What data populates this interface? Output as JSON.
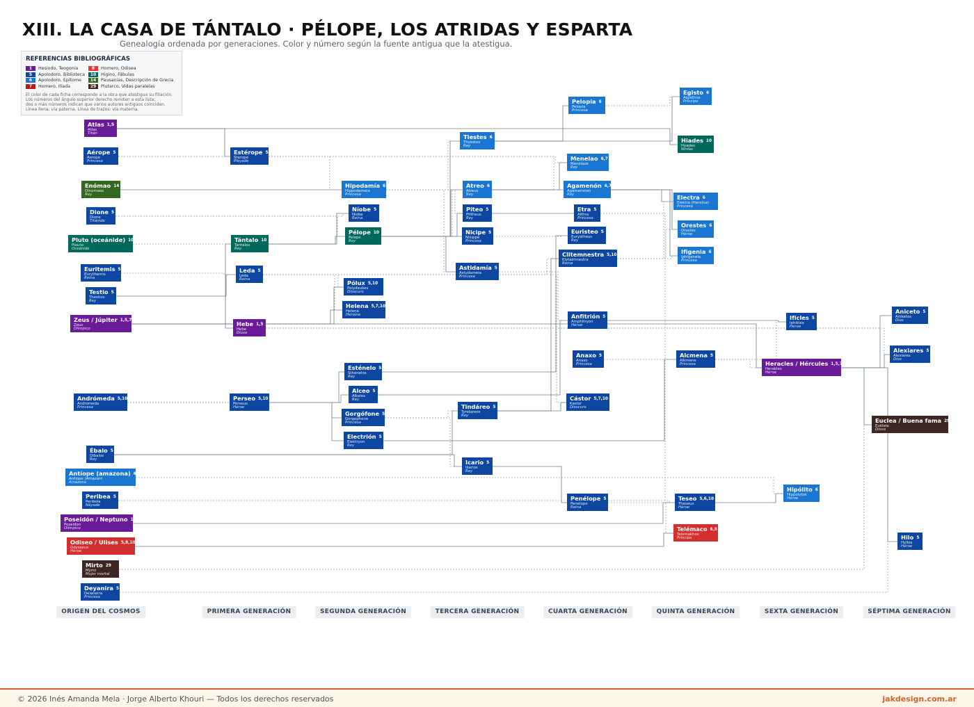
{
  "header": {
    "title": "XIII. LA CASA DE TÁNTALO · PÉLOPE, LOS ATRIDAS Y ESPARTA",
    "subtitle": "Genealogía ordenada por generaciones. Color y número según la fuente antigua que la atestigua."
  },
  "legend": {
    "title": "REFERENCIAS BIBLIOGRÁFICAS",
    "items": [
      {
        "number": 1,
        "label": "Hesíodo, Teogonía",
        "color": "#6a1b9a"
      },
      {
        "number": 8,
        "label": "Homero, Odisea",
        "color": "#e53935"
      },
      {
        "number": 5,
        "label": "Apolodoro, Biblioteca",
        "color": "#0d47a1"
      },
      {
        "number": 10,
        "label": "Higino, Fábulas",
        "color": "#00695c"
      },
      {
        "number": 6,
        "label": "Apolodoro, Epítome",
        "color": "#1976d2"
      },
      {
        "number": 14,
        "label": "Pausanias, Descripción de Grecia",
        "color": "#33691e"
      },
      {
        "number": 7,
        "label": "Homero, Ilíada",
        "color": "#b71c1c"
      },
      {
        "number": 29,
        "label": "Plutarco, Vidas paralelas",
        "color": "#3e2723"
      }
    ],
    "notes": [
      "El color de cada ficha corresponde a la obra que atestigua su filiación.",
      "Los números del ángulo superior derecho remiten a esta lista;",
      "dos o más números indican que varios autores antiguos coinciden.",
      "Línea llena: vía paterna. Línea de trazos: vía materna."
    ]
  },
  "nodes": [
    {
      "name": "Atlas",
      "refs": "1,5",
      "latin": "Atlas",
      "role": "Titán",
      "color": "#6a1b9a"
    },
    {
      "name": "Aérope",
      "refs": "5",
      "latin": "Aerope",
      "role": "Princesa",
      "color": "#0d47a1"
    },
    {
      "name": "Enómao",
      "refs": "14",
      "latin": "Oinomaos",
      "role": "Rey",
      "color": "#33691e"
    },
    {
      "name": "Dione",
      "refs": "5",
      "latin": "Dione",
      "role": "Titánide",
      "color": "#0d47a1"
    },
    {
      "name": "Pluto (oceánide)",
      "refs": "10",
      "latin": "Plouto",
      "role": "Oceánide",
      "color": "#00695c"
    },
    {
      "name": "Euritemis",
      "refs": "5",
      "latin": "Eurythemis",
      "role": "Reina",
      "color": "#0d47a1"
    },
    {
      "name": "Testio",
      "refs": "5",
      "latin": "Thestios",
      "role": "Rey",
      "color": "#0d47a1"
    },
    {
      "name": "Zeus / Júpiter",
      "refs": "1,5,7",
      "latin": "Zeus",
      "role": "Olímpico",
      "color": "#6a1b9a"
    },
    {
      "name": "Andrómeda",
      "refs": "5,10",
      "latin": "Andromeda",
      "role": "Princesa",
      "color": "#0d47a1"
    },
    {
      "name": "Ébalo",
      "refs": "5",
      "latin": "Oibalos",
      "role": "Rey",
      "color": "#0d47a1"
    },
    {
      "name": "Antíope (amazona)",
      "refs": "6",
      "latin": "Antiope (Amazon)",
      "role": "Amazona",
      "color": "#1976d2"
    },
    {
      "name": "Peribea",
      "refs": "5",
      "latin": "Periboia",
      "role": "Náyade",
      "color": "#0d47a1"
    },
    {
      "name": "Poseidón / Neptuno",
      "refs": "1,5,7",
      "latin": "Poseidon",
      "role": "Olímpico",
      "color": "#6a1b9a"
    },
    {
      "name": "Odiseo / Ulises",
      "refs": "5,8,10",
      "latin": "Odysseus",
      "role": "Héroe",
      "color": "#d32f2f"
    },
    {
      "name": "Mirto",
      "refs": "29",
      "latin": "Myrto",
      "role": "Mujer mortal",
      "color": "#3e2723"
    },
    {
      "name": "Deyanira",
      "refs": "5",
      "latin": "Deianeira",
      "role": "Princesa",
      "color": "#0d47a1"
    },
    {
      "name": "Estérope",
      "refs": "5",
      "latin": "Sterope",
      "role": "Pléyade",
      "color": "#0d47a1"
    },
    {
      "name": "Tántalo",
      "refs": "10",
      "latin": "Tantalos",
      "role": "Rey",
      "color": "#00695c"
    },
    {
      "name": "Leda",
      "refs": "5",
      "latin": "Leda",
      "role": "Reina",
      "color": "#0d47a1"
    },
    {
      "name": "Hebe",
      "refs": "1,5",
      "latin": "Hebe",
      "role": "Diosa",
      "color": "#6a1b9a"
    },
    {
      "name": "Perseo",
      "refs": "5,10",
      "latin": "Perseus",
      "role": "Héroe",
      "color": "#0d47a1"
    },
    {
      "name": "Hipodamía",
      "refs": "6",
      "latin": "Hippodameia",
      "role": "Princesa",
      "color": "#1976d2"
    },
    {
      "name": "Níobe",
      "refs": "5",
      "latin": "Niobe",
      "role": "Reina",
      "color": "#0d47a1"
    },
    {
      "name": "Pélope",
      "refs": "10",
      "latin": "Pelops",
      "role": "Rey",
      "color": "#00695c"
    },
    {
      "name": "Pólux",
      "refs": "5,10",
      "latin": "Polydeukes",
      "role": "Dioscuro",
      "color": "#0d47a1"
    },
    {
      "name": "Helena",
      "refs": "5,7,10",
      "latin": "Helene",
      "role": "Heroína",
      "color": "#0d47a1"
    },
    {
      "name": "Esténelo",
      "refs": "5",
      "latin": "Sthenelos",
      "role": "Rey",
      "color": "#0d47a1"
    },
    {
      "name": "Alceo",
      "refs": "5",
      "latin": "Alkaios",
      "role": "Rey",
      "color": "#0d47a1"
    },
    {
      "name": "Gorgófone",
      "refs": "5",
      "latin": "Gorgophone",
      "role": "Princesa",
      "color": "#0d47a1"
    },
    {
      "name": "Electrión",
      "refs": "5",
      "latin": "Elektryon",
      "role": "Rey",
      "color": "#0d47a1"
    },
    {
      "name": "Tiestes",
      "refs": "6",
      "latin": "Thyestes",
      "role": "Rey",
      "color": "#1976d2"
    },
    {
      "name": "Atreo",
      "refs": "6",
      "latin": "Atreus",
      "role": "Rey",
      "color": "#1976d2"
    },
    {
      "name": "Piteo",
      "refs": "5",
      "latin": "Pittheus",
      "role": "Rey",
      "color": "#0d47a1"
    },
    {
      "name": "Nicipe",
      "refs": "5",
      "latin": "Nikippe",
      "role": "Princesa",
      "color": "#0d47a1"
    },
    {
      "name": "Astidamía",
      "refs": "5",
      "latin": "Astydameia",
      "role": "Princesa",
      "color": "#0d47a1"
    },
    {
      "name": "Tindáreo",
      "refs": "5",
      "latin": "Tyndareos",
      "role": "Rey",
      "color": "#0d47a1"
    },
    {
      "name": "Icario",
      "refs": "5",
      "latin": "Ikarios",
      "role": "Rey",
      "color": "#0d47a1"
    },
    {
      "name": "Pelopia",
      "refs": "6",
      "latin": "Pelopia",
      "role": "Princesa",
      "color": "#1976d2"
    },
    {
      "name": "Menelao",
      "refs": "6,7",
      "latin": "Menelaos",
      "role": "Rey",
      "color": "#1976d2"
    },
    {
      "name": "Agamenón",
      "refs": "6,7",
      "latin": "Agamemnon",
      "role": "Rey",
      "color": "#1976d2"
    },
    {
      "name": "Etra",
      "refs": "5",
      "latin": "Aithra",
      "role": "Princesa",
      "color": "#0d47a1"
    },
    {
      "name": "Euristeo",
      "refs": "5",
      "latin": "Eurystheus",
      "role": "Rey",
      "color": "#0d47a1"
    },
    {
      "name": "Clitemnestra",
      "refs": "5,10",
      "latin": "Klytaimnestra",
      "role": "Reina",
      "color": "#0d47a1"
    },
    {
      "name": "Anfitrión",
      "refs": "5",
      "latin": "Amphitryon",
      "role": "Héroe",
      "color": "#0d47a1"
    },
    {
      "name": "Anaxo",
      "refs": "5",
      "latin": "Anaxo",
      "role": "Princesa",
      "color": "#0d47a1"
    },
    {
      "name": "Cástor",
      "refs": "5,7,10",
      "latin": "Kastor",
      "role": "Dioscuro",
      "color": "#0d47a1"
    },
    {
      "name": "Penélope",
      "refs": "5",
      "latin": "Penelope",
      "role": "Reina",
      "color": "#0d47a1"
    },
    {
      "name": "Egisto",
      "refs": "6",
      "latin": "Aigisthos",
      "role": "Príncipe",
      "color": "#1976d2"
    },
    {
      "name": "Hiades",
      "refs": "10",
      "latin": "Hyades",
      "role": "Ninfas",
      "color": "#00695c"
    },
    {
      "name": "Electra",
      "refs": "6",
      "latin": "Elektra (Heroína)",
      "role": "Princesa",
      "color": "#1976d2"
    },
    {
      "name": "Orestes",
      "refs": "6",
      "latin": "Orestes",
      "role": "Héroe",
      "color": "#1976d2"
    },
    {
      "name": "Ifigenia",
      "refs": "6",
      "latin": "Iphigeneia",
      "role": "Princesa",
      "color": "#1976d2"
    },
    {
      "name": "Alcmena",
      "refs": "5",
      "latin": "Alkmene",
      "role": "Princesa",
      "color": "#0d47a1"
    },
    {
      "name": "Teseo",
      "refs": "5,6,10",
      "latin": "Theseus",
      "role": "Héroe",
      "color": "#0d47a1"
    },
    {
      "name": "Telémaco",
      "refs": "6,8",
      "latin": "Telemakhos",
      "role": "Príncipe",
      "color": "#d32f2f"
    },
    {
      "name": "Ificles",
      "refs": "5",
      "latin": "Iphikles",
      "role": "Héroe",
      "color": "#0d47a1"
    },
    {
      "name": "Hipólito",
      "refs": "6",
      "latin": "Hippolytos",
      "role": "Héroe",
      "color": "#1976d2"
    },
    {
      "name": "Heracles / Hércules",
      "refs": "1,5,7",
      "latin": "Herakles",
      "role": "Héroe",
      "color": "#6a1b9a"
    },
    {
      "name": "Aniceto",
      "refs": "5",
      "latin": "Aniketos",
      "role": "Dios",
      "color": "#0d47a1"
    },
    {
      "name": "Alexiares",
      "refs": "5",
      "latin": "Alexiares",
      "role": "Dios",
      "color": "#0d47a1"
    },
    {
      "name": "Euclea / Buena fama",
      "refs": "29",
      "latin": "Eukleia",
      "role": "Diosa",
      "color": "#3e2723"
    },
    {
      "name": "Hilo",
      "refs": "5",
      "latin": "Hyllos",
      "role": "Héroe",
      "color": "#0d47a1"
    }
  ],
  "generations": [
    "ORIGEN DEL COSMOS",
    "PRIMERA GENERACIÓN",
    "SEGUNDA GENERACIÓN",
    "TERCERA GENERACIÓN",
    "CUARTA GENERACIÓN",
    "QUINTA GENERACIÓN",
    "SEXTA GENERACIÓN",
    "SÉPTIMA GENERACIÓN"
  ],
  "footer": {
    "credits": "© 2026  Inés Amanda Mela  ·  Jorge Alberto Khouri  —  Todos los derechos reservados",
    "site": "jakdesign.com.ar"
  }
}
